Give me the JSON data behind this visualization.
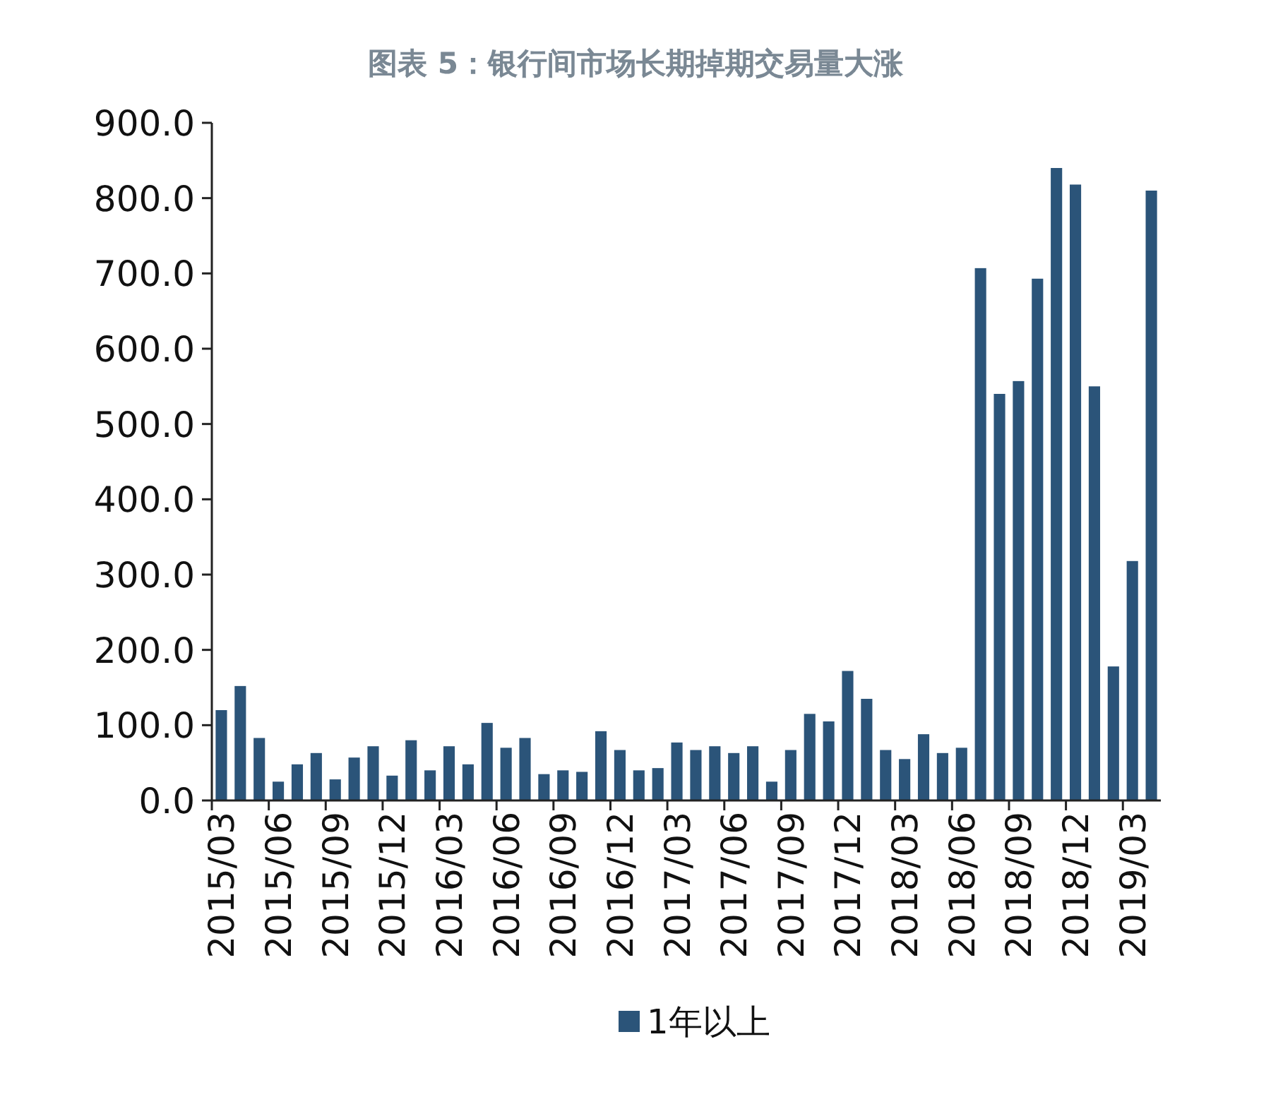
{
  "chart_data": {
    "type": "bar",
    "title": "图表 5：银行间市场长期掉期交易量大涨",
    "categories": [
      "2015/03",
      null,
      null,
      "2015/06",
      null,
      null,
      "2015/09",
      null,
      null,
      "2015/12",
      null,
      null,
      "2016/03",
      null,
      null,
      "2016/06",
      null,
      null,
      "2016/09",
      null,
      null,
      "2016/12",
      null,
      null,
      "2017/03",
      null,
      null,
      "2017/06",
      null,
      null,
      "2017/09",
      null,
      null,
      "2017/12",
      null,
      null,
      "2018/03",
      null,
      null,
      "2018/06",
      null,
      null,
      "2018/09",
      null,
      null,
      "2018/12",
      null,
      null,
      "2019/03",
      null
    ],
    "series": [
      {
        "name": "1年以上",
        "color": "#2b5479",
        "values": [
          120,
          152,
          83,
          25,
          48,
          63,
          28,
          57,
          72,
          33,
          80,
          40,
          72,
          48,
          103,
          70,
          83,
          35,
          40,
          38,
          92,
          67,
          40,
          43,
          77,
          67,
          72,
          63,
          72,
          25,
          67,
          115,
          105,
          172,
          135,
          67,
          55,
          88,
          63,
          70,
          707,
          540,
          557,
          693,
          840,
          818,
          550,
          178,
          318,
          810
        ]
      }
    ],
    "ylim": [
      0,
      900
    ],
    "yticks": [
      {
        "value": 0,
        "label": "0.0"
      },
      {
        "value": 100,
        "label": "100.0"
      },
      {
        "value": 200,
        "label": "200.0"
      },
      {
        "value": 300,
        "label": "300.0"
      },
      {
        "value": 400,
        "label": "400.0"
      },
      {
        "value": 500,
        "label": "500.0"
      },
      {
        "value": 600,
        "label": "600.0"
      },
      {
        "value": 700,
        "label": "700.0"
      },
      {
        "value": 800,
        "label": "800.0"
      },
      {
        "value": 900,
        "label": "900.0"
      }
    ],
    "grid": false,
    "legend": "bottom"
  }
}
